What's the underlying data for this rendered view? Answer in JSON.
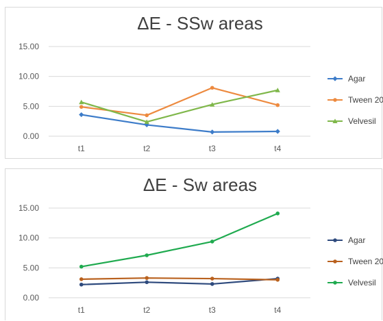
{
  "chart_data": [
    {
      "type": "line",
      "title": "ΔE - SSw areas",
      "categories": [
        "t1",
        "t2",
        "t3",
        "t4"
      ],
      "ylim": [
        0,
        15
      ],
      "yticks": [
        "0.00",
        "5.00",
        "10.00",
        "15.00"
      ],
      "grid": true,
      "legend_position": "right",
      "series": [
        {
          "name": "Agar",
          "color": "#3d7cc9",
          "marker": "diamond",
          "values": [
            3.6,
            1.9,
            0.7,
            0.8
          ]
        },
        {
          "name": "Tween 20",
          "color": "#ed8a3f",
          "marker": "circle",
          "values": [
            4.9,
            3.5,
            8.1,
            5.2
          ]
        },
        {
          "name": "Velvesil",
          "color": "#7fb74a",
          "marker": "triangle",
          "values": [
            5.7,
            2.4,
            5.3,
            7.7
          ]
        }
      ]
    },
    {
      "type": "line",
      "title": "ΔE - Sw areas",
      "categories": [
        "t1",
        "t2",
        "t3",
        "t4"
      ],
      "ylim": [
        0,
        15
      ],
      "yticks": [
        "0.00",
        "5.00",
        "10.00",
        "15.00"
      ],
      "grid": true,
      "legend_position": "right",
      "series": [
        {
          "name": "Agar",
          "color": "#2e4a7d",
          "marker": "circle",
          "values": [
            2.2,
            2.6,
            2.3,
            3.2
          ]
        },
        {
          "name": "Tween 20",
          "color": "#b9611e",
          "marker": "circle",
          "values": [
            3.1,
            3.3,
            3.2,
            3.0
          ]
        },
        {
          "name": "Velvesil",
          "color": "#1faa4f",
          "marker": "circle",
          "values": [
            5.2,
            7.1,
            9.4,
            14.1
          ]
        }
      ]
    }
  ]
}
